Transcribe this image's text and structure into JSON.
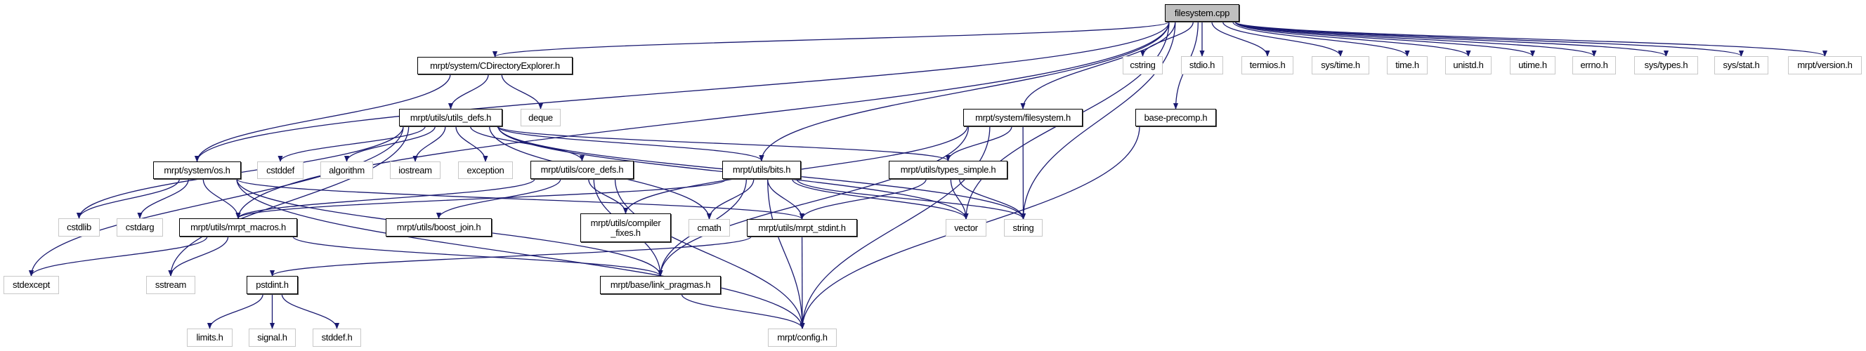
{
  "edge_color": "#191970",
  "nodes": [
    {
      "id": "root",
      "label": "filesystem.cpp",
      "kind": "root"
    },
    {
      "id": "cdir",
      "label": "mrpt/system/CDirectoryExplorer.h",
      "kind": "internal"
    },
    {
      "id": "cstring",
      "label": "cstring",
      "kind": "external"
    },
    {
      "id": "stdio",
      "label": "stdio.h",
      "kind": "external"
    },
    {
      "id": "termios",
      "label": "termios.h",
      "kind": "external"
    },
    {
      "id": "systime",
      "label": "sys/time.h",
      "kind": "external"
    },
    {
      "id": "time",
      "label": "time.h",
      "kind": "external"
    },
    {
      "id": "unistd",
      "label": "unistd.h",
      "kind": "external"
    },
    {
      "id": "utime",
      "label": "utime.h",
      "kind": "external"
    },
    {
      "id": "errno",
      "label": "errno.h",
      "kind": "external"
    },
    {
      "id": "systypes",
      "label": "sys/types.h",
      "kind": "external"
    },
    {
      "id": "sysstat",
      "label": "sys/stat.h",
      "kind": "external"
    },
    {
      "id": "version",
      "label": "mrpt/version.h",
      "kind": "external"
    },
    {
      "id": "utilsdefs",
      "label": "mrpt/utils/utils_defs.h",
      "kind": "internal"
    },
    {
      "id": "deque",
      "label": "deque",
      "kind": "external"
    },
    {
      "id": "fsh",
      "label": "mrpt/system/filesystem.h",
      "kind": "internal"
    },
    {
      "id": "baseprecomp",
      "label": "base-precomp.h",
      "kind": "internal"
    },
    {
      "id": "os",
      "label": "mrpt/system/os.h",
      "kind": "internal"
    },
    {
      "id": "cstddef",
      "label": "cstddef",
      "kind": "external"
    },
    {
      "id": "algorithm",
      "label": "algorithm",
      "kind": "external"
    },
    {
      "id": "iostream",
      "label": "iostream",
      "kind": "external"
    },
    {
      "id": "exception",
      "label": "exception",
      "kind": "external"
    },
    {
      "id": "coredefs",
      "label": "mrpt/utils/core_defs.h",
      "kind": "internal"
    },
    {
      "id": "bits",
      "label": "mrpt/utils/bits.h",
      "kind": "internal"
    },
    {
      "id": "typessimple",
      "label": "mrpt/utils/types_simple.h",
      "kind": "internal"
    },
    {
      "id": "cstdlib",
      "label": "cstdlib",
      "kind": "external"
    },
    {
      "id": "cstdarg",
      "label": "cstdarg",
      "kind": "external"
    },
    {
      "id": "macros",
      "label": "mrpt/utils/mrpt_macros.h",
      "kind": "internal"
    },
    {
      "id": "boostjoin",
      "label": "mrpt/utils/boost_join.h",
      "kind": "internal"
    },
    {
      "id": "compfixes",
      "label": "mrpt/utils/compiler\n_fixes.h",
      "kind": "internal"
    },
    {
      "id": "cmath",
      "label": "cmath",
      "kind": "external"
    },
    {
      "id": "stdint",
      "label": "mrpt/utils/mrpt_stdint.h",
      "kind": "internal"
    },
    {
      "id": "vector",
      "label": "vector",
      "kind": "external"
    },
    {
      "id": "string",
      "label": "string",
      "kind": "external"
    },
    {
      "id": "stdexcept",
      "label": "stdexcept",
      "kind": "external"
    },
    {
      "id": "sstream",
      "label": "sstream",
      "kind": "external"
    },
    {
      "id": "pstdint",
      "label": "pstdint.h",
      "kind": "internal"
    },
    {
      "id": "linkpragmas",
      "label": "mrpt/base/link_pragmas.h",
      "kind": "internal"
    },
    {
      "id": "limits",
      "label": "limits.h",
      "kind": "external"
    },
    {
      "id": "signal",
      "label": "signal.h",
      "kind": "external"
    },
    {
      "id": "stddef",
      "label": "stddef.h",
      "kind": "external"
    },
    {
      "id": "config",
      "label": "mrpt/config.h",
      "kind": "external"
    }
  ],
  "edges": [
    [
      "root",
      "cdir"
    ],
    [
      "root",
      "os"
    ],
    [
      "root",
      "macros"
    ],
    [
      "root",
      "bits"
    ],
    [
      "root",
      "vector"
    ],
    [
      "root",
      "string"
    ],
    [
      "root",
      "fsh"
    ],
    [
      "root",
      "baseprecomp"
    ],
    [
      "root",
      "cstring"
    ],
    [
      "root",
      "stdio"
    ],
    [
      "root",
      "termios"
    ],
    [
      "root",
      "systime"
    ],
    [
      "root",
      "time"
    ],
    [
      "root",
      "unistd"
    ],
    [
      "root",
      "utime"
    ],
    [
      "root",
      "errno"
    ],
    [
      "root",
      "systypes"
    ],
    [
      "root",
      "sysstat"
    ],
    [
      "root",
      "version"
    ],
    [
      "cdir",
      "utilsdefs"
    ],
    [
      "cdir",
      "deque"
    ],
    [
      "cdir",
      "os"
    ],
    [
      "utilsdefs",
      "stdexcept"
    ],
    [
      "utilsdefs",
      "cstdlib"
    ],
    [
      "utilsdefs",
      "sstream"
    ],
    [
      "utilsdefs",
      "cstddef"
    ],
    [
      "utilsdefs",
      "algorithm"
    ],
    [
      "utilsdefs",
      "iostream"
    ],
    [
      "utilsdefs",
      "exception"
    ],
    [
      "utilsdefs",
      "coredefs"
    ],
    [
      "utilsdefs",
      "cmath"
    ],
    [
      "utilsdefs",
      "bits"
    ],
    [
      "utilsdefs",
      "typessimple"
    ],
    [
      "utilsdefs",
      "vector"
    ],
    [
      "utilsdefs",
      "string"
    ],
    [
      "os",
      "cstdlib"
    ],
    [
      "os",
      "cstdarg"
    ],
    [
      "os",
      "macros"
    ],
    [
      "os",
      "linkpragmas"
    ],
    [
      "os",
      "config"
    ],
    [
      "os",
      "stdint"
    ],
    [
      "coredefs",
      "macros"
    ],
    [
      "coredefs",
      "boostjoin"
    ],
    [
      "coredefs",
      "compfixes"
    ],
    [
      "coredefs",
      "linkpragmas"
    ],
    [
      "coredefs",
      "config"
    ],
    [
      "bits",
      "macros"
    ],
    [
      "bits",
      "cmath"
    ],
    [
      "bits",
      "stdint"
    ],
    [
      "bits",
      "linkpragmas"
    ],
    [
      "bits",
      "config"
    ],
    [
      "bits",
      "vector"
    ],
    [
      "bits",
      "string"
    ],
    [
      "typessimple",
      "stdint"
    ],
    [
      "typessimple",
      "vector"
    ],
    [
      "typessimple",
      "string"
    ],
    [
      "fsh",
      "compfixes"
    ],
    [
      "fsh",
      "typessimple"
    ],
    [
      "fsh",
      "string"
    ],
    [
      "fsh",
      "linkpragmas"
    ],
    [
      "fsh",
      "config"
    ],
    [
      "macros",
      "stdexcept"
    ],
    [
      "macros",
      "sstream"
    ],
    [
      "macros",
      "linkpragmas"
    ],
    [
      "stdint",
      "pstdint"
    ],
    [
      "stdint",
      "config"
    ],
    [
      "pstdint",
      "limits"
    ],
    [
      "pstdint",
      "signal"
    ],
    [
      "pstdint",
      "stddef"
    ],
    [
      "linkpragmas",
      "config"
    ],
    [
      "baseprecomp",
      "config"
    ]
  ]
}
